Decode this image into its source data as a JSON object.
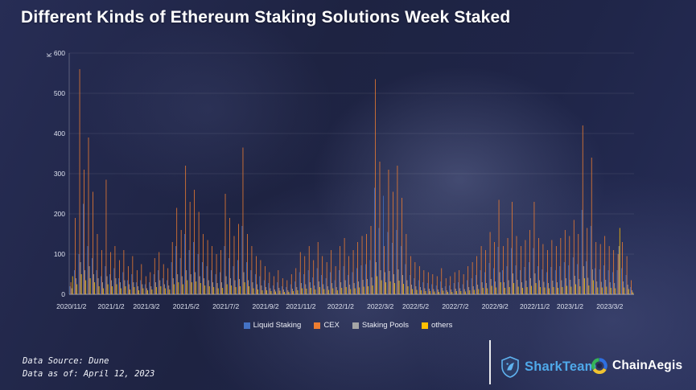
{
  "title": "Different Kinds of Ethereum Staking Solutions Week Staked",
  "footer": {
    "source": "Data Source: Dune",
    "as_of": "Data as of: April 12, 2023"
  },
  "logos": {
    "sharkteam": "SharkTeam",
    "chainaegis": "ChainAegis"
  },
  "chart_data": {
    "type": "bar",
    "title": "Different Kinds of Ethereum Staking Solutions Week Staked",
    "xlabel": "",
    "ylabel": "K",
    "ylim": [
      0,
      600
    ],
    "y_ticks": [
      0,
      100,
      200,
      300,
      400,
      500,
      600
    ],
    "grid": true,
    "legend_position": "bottom",
    "x_tick_labels": [
      "2020/11/2",
      "2021/1/2",
      "2021/3/2",
      "2021/5/2",
      "2021/7/2",
      "2021/9/2",
      "2021/11/2",
      "2022/1/2",
      "2022/3/2",
      "2022/5/2",
      "2022/7/2",
      "2022/9/2",
      "2022/11/2",
      "2023/1/2",
      "2023/3/2"
    ],
    "x_tick_indices": [
      0,
      9,
      17,
      26,
      35,
      44,
      52,
      61,
      70,
      78,
      87,
      96,
      105,
      113,
      122
    ],
    "x": [
      "2020/11/2",
      "2020/11/9",
      "2020/11/16",
      "2020/11/23",
      "2020/11/30",
      "2020/12/7",
      "2020/12/14",
      "2020/12/21",
      "2020/12/28",
      "2021/1/4",
      "2021/1/11",
      "2021/1/18",
      "2021/1/25",
      "2021/2/1",
      "2021/2/8",
      "2021/2/15",
      "2021/2/22",
      "2021/3/1",
      "2021/3/8",
      "2021/3/15",
      "2021/3/22",
      "2021/3/29",
      "2021/4/5",
      "2021/4/12",
      "2021/4/19",
      "2021/4/26",
      "2021/5/3",
      "2021/5/10",
      "2021/5/17",
      "2021/5/24",
      "2021/5/31",
      "2021/6/7",
      "2021/6/14",
      "2021/6/21",
      "2021/6/28",
      "2021/7/5",
      "2021/7/12",
      "2021/7/19",
      "2021/7/26",
      "2021/8/2",
      "2021/8/9",
      "2021/8/16",
      "2021/8/23",
      "2021/8/30",
      "2021/9/6",
      "2021/9/13",
      "2021/9/20",
      "2021/9/27",
      "2021/10/4",
      "2021/10/11",
      "2021/10/18",
      "2021/10/25",
      "2021/11/1",
      "2021/11/8",
      "2021/11/15",
      "2021/11/22",
      "2021/11/29",
      "2021/12/6",
      "2021/12/13",
      "2021/12/20",
      "2021/12/27",
      "2022/1/3",
      "2022/1/10",
      "2022/1/17",
      "2022/1/24",
      "2022/1/31",
      "2022/2/7",
      "2022/2/14",
      "2022/2/21",
      "2022/2/28",
      "2022/3/7",
      "2022/3/14",
      "2022/3/21",
      "2022/3/28",
      "2022/4/4",
      "2022/4/11",
      "2022/4/18",
      "2022/4/25",
      "2022/5/2",
      "2022/5/9",
      "2022/5/16",
      "2022/5/23",
      "2022/5/30",
      "2022/6/6",
      "2022/6/13",
      "2022/6/20",
      "2022/6/27",
      "2022/7/4",
      "2022/7/11",
      "2022/7/18",
      "2022/7/25",
      "2022/8/1",
      "2022/8/8",
      "2022/8/15",
      "2022/8/22",
      "2022/8/29",
      "2022/9/5",
      "2022/9/12",
      "2022/9/19",
      "2022/9/26",
      "2022/10/3",
      "2022/10/10",
      "2022/10/17",
      "2022/10/24",
      "2022/10/31",
      "2022/11/7",
      "2022/11/14",
      "2022/11/21",
      "2022/11/28",
      "2022/12/5",
      "2022/12/12",
      "2022/12/19",
      "2022/12/26",
      "2023/1/2",
      "2023/1/9",
      "2023/1/16",
      "2023/1/23",
      "2023/1/30",
      "2023/2/6",
      "2023/2/13",
      "2023/2/20",
      "2023/2/27",
      "2023/3/6",
      "2023/3/13",
      "2023/3/20",
      "2023/3/27",
      "2023/4/3",
      "2023/4/10"
    ],
    "series": [
      {
        "name": "Liquid Staking",
        "color": "#4472C4",
        "values": [
          20,
          60,
          100,
          225,
          120,
          90,
          60,
          45,
          70,
          50,
          65,
          40,
          55,
          35,
          50,
          30,
          35,
          25,
          30,
          50,
          60,
          40,
          35,
          80,
          120,
          90,
          150,
          110,
          130,
          100,
          80,
          70,
          60,
          50,
          55,
          120,
          90,
          70,
          85,
          170,
          80,
          60,
          50,
          45,
          35,
          28,
          22,
          30,
          20,
          18,
          25,
          32,
          55,
          50,
          60,
          42,
          65,
          48,
          40,
          55,
          35,
          60,
          70,
          48,
          55,
          65,
          72,
          75,
          85,
          265,
          165,
          245,
          155,
          128,
          160,
          120,
          75,
          48,
          40,
          35,
          30,
          28,
          25,
          22,
          32,
          20,
          22,
          28,
          30,
          25,
          35,
          40,
          48,
          60,
          55,
          78,
          65,
          118,
          60,
          70,
          115,
          72,
          60,
          68,
          80,
          115,
          70,
          62,
          55,
          68,
          60,
          70,
          80,
          72,
          92,
          75,
          210,
          82,
          170,
          65,
          62,
          72,
          60,
          55,
          60,
          65,
          48,
          18
        ]
      },
      {
        "name": "CEX",
        "color": "#ED7D31",
        "values": [
          30,
          190,
          560,
          310,
          390,
          255,
          150,
          110,
          285,
          105,
          120,
          85,
          110,
          70,
          95,
          60,
          75,
          45,
          55,
          90,
          105,
          75,
          65,
          130,
          215,
          160,
          320,
          230,
          260,
          205,
          150,
          135,
          120,
          100,
          110,
          250,
          190,
          145,
          175,
          365,
          150,
          120,
          95,
          85,
          70,
          55,
          45,
          60,
          40,
          35,
          50,
          65,
          105,
          95,
          120,
          85,
          130,
          95,
          80,
          110,
          70,
          120,
          140,
          95,
          110,
          130,
          145,
          150,
          170,
          535,
          330,
          120,
          310,
          255,
          320,
          240,
          150,
          95,
          80,
          70,
          60,
          55,
          50,
          45,
          65,
          40,
          45,
          55,
          60,
          50,
          70,
          80,
          95,
          120,
          110,
          155,
          130,
          235,
          120,
          140,
          230,
          145,
          120,
          135,
          160,
          230,
          140,
          125,
          110,
          135,
          120,
          140,
          160,
          145,
          185,
          150,
          420,
          165,
          340,
          130,
          125,
          145,
          120,
          110,
          100,
          130,
          95,
          35
        ]
      },
      {
        "name": "Staking Pools",
        "color": "#A5A5A5",
        "values": [
          15,
          40,
          80,
          60,
          70,
          50,
          40,
          30,
          45,
          35,
          40,
          30,
          35,
          25,
          30,
          20,
          25,
          15,
          20,
          30,
          35,
          25,
          22,
          40,
          50,
          45,
          60,
          50,
          55,
          45,
          40,
          35,
          30,
          28,
          30,
          45,
          40,
          35,
          38,
          55,
          35,
          30,
          25,
          22,
          18,
          15,
          12,
          16,
          12,
          10,
          14,
          18,
          28,
          25,
          30,
          22,
          32,
          25,
          20,
          28,
          18,
          30,
          35,
          24,
          28,
          32,
          36,
          38,
          42,
          80,
          60,
          55,
          58,
          50,
          62,
          48,
          35,
          24,
          20,
          18,
          15,
          14,
          13,
          12,
          16,
          10,
          12,
          14,
          15,
          13,
          18,
          20,
          24,
          30,
          28,
          38,
          32,
          55,
          30,
          35,
          52,
          36,
          30,
          34,
          40,
          52,
          35,
          31,
          28,
          34,
          30,
          35,
          40,
          36,
          46,
          38,
          70,
          41,
          62,
          32,
          31,
          36,
          30,
          28,
          120,
          32,
          24,
          10
        ]
      },
      {
        "name": "others",
        "color": "#FFC000",
        "values": [
          45,
          25,
          50,
          35,
          40,
          30,
          20,
          15,
          25,
          20,
          25,
          15,
          20,
          12,
          18,
          10,
          15,
          10,
          12,
          18,
          20,
          15,
          12,
          25,
          30,
          25,
          35,
          30,
          32,
          28,
          22,
          20,
          18,
          15,
          16,
          25,
          22,
          18,
          20,
          30,
          20,
          15,
          12,
          10,
          10,
          8,
          7,
          9,
          6,
          6,
          8,
          10,
          15,
          14,
          16,
          12,
          18,
          13,
          11,
          15,
          10,
          16,
          18,
          13,
          15,
          17,
          19,
          20,
          22,
          45,
          35,
          30,
          32,
          28,
          34,
          26,
          20,
          13,
          11,
          10,
          8,
          8,
          7,
          6,
          9,
          6,
          6,
          8,
          8,
          7,
          10,
          11,
          13,
          16,
          15,
          21,
          17,
          30,
          16,
          18,
          28,
          19,
          16,
          18,
          21,
          28,
          18,
          17,
          15,
          18,
          16,
          18,
          21,
          19,
          25,
          20,
          40,
          22,
          35,
          17,
          17,
          19,
          16,
          15,
          165,
          17,
          13,
          5
        ]
      }
    ]
  }
}
